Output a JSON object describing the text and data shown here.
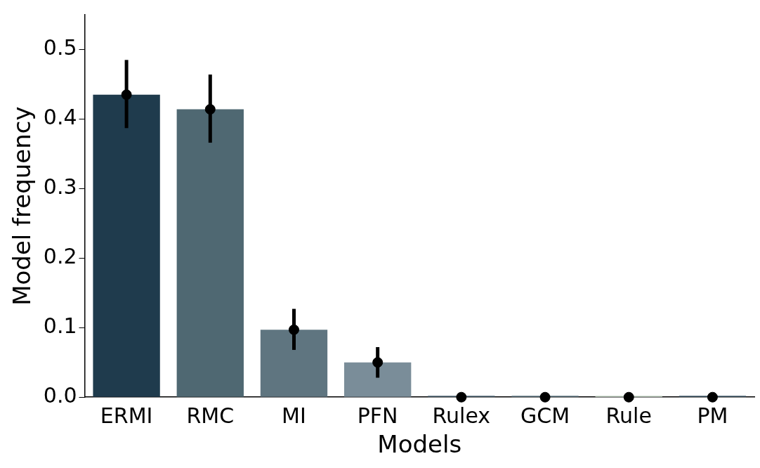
{
  "chart_data": {
    "type": "bar",
    "xlabel": "Models",
    "ylabel": "Model frequency",
    "categories": [
      "ERMI",
      "RMC",
      "MI",
      "PFN",
      "Rulex",
      "GCM",
      "Rule",
      "PM"
    ],
    "series": [
      {
        "type": "bar",
        "values": [
          0.435,
          0.414,
          0.097,
          0.05,
          0,
          0,
          0,
          0
        ],
        "errors": [
          [
            0.387,
            0.485
          ],
          [
            0.366,
            0.464
          ],
          [
            0.068,
            0.127
          ],
          [
            0.028,
            0.072
          ],
          null,
          null,
          null,
          null
        ],
        "colors": [
          "#1f3b4d",
          "#4f6872",
          "#5f7580",
          "#7a8d99",
          "#4a6270",
          "#5d7580",
          "#c8d8c8",
          "#3f5a6a"
        ]
      },
      {
        "type": "scatter",
        "x": [
          "ERMI",
          "RMC",
          "MI",
          "PFN",
          "Rulex",
          "GCM",
          "Rule",
          "PM"
        ],
        "values": [
          0.435,
          0.414,
          0.097,
          0.05,
          0,
          0,
          0,
          0
        ],
        "color": "#000000"
      }
    ],
    "ylim": [
      0,
      0.55
    ],
    "yticks": [
      {
        "value": 0,
        "label": "0.0"
      },
      0.1,
      0.2,
      0.3,
      0.4,
      0.5
    ],
    "grid": false,
    "legend": false,
    "marker": "circle"
  }
}
